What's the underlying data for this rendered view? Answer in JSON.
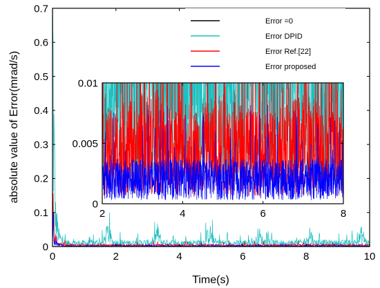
{
  "chart_data": [
    {
      "type": "line",
      "title": "",
      "xlabel": "Time(s)",
      "ylabel": "absolute value of Error(mrad/s)",
      "xlim": [
        0,
        10
      ],
      "ylim": [
        0,
        0.7
      ],
      "xticks": [
        "0",
        "2",
        "4",
        "6",
        "8",
        "10"
      ],
      "yticks": [
        "0",
        "0.1",
        "0.2",
        "0.3",
        "0.4",
        "0.5",
        "0.6",
        "0.7"
      ],
      "grid": false,
      "legend_position": "top-right",
      "series": [
        {
          "name": "Error =0",
          "color": "#000000",
          "x": [
            0,
            10
          ],
          "y": [
            0,
            0
          ]
        },
        {
          "name": "Error DPID",
          "color": "#1fbfbf",
          "x": [
            0,
            0.05,
            0.1,
            0.2,
            0.3,
            0.5,
            1.0,
            1.6,
            1.75,
            1.9,
            2.5,
            3.2,
            3.3,
            3.45,
            4.0,
            4.8,
            4.95,
            5.1,
            5.7,
            6.4,
            6.5,
            6.65,
            7.3,
            8.0,
            8.1,
            8.25,
            9.0,
            9.6,
            9.75,
            9.9,
            10.0
          ],
          "y": [
            0.6,
            0.25,
            0.08,
            0.03,
            0.015,
            0.01,
            0.01,
            0.012,
            0.04,
            0.012,
            0.01,
            0.012,
            0.04,
            0.012,
            0.01,
            0.012,
            0.04,
            0.012,
            0.01,
            0.012,
            0.035,
            0.012,
            0.01,
            0.012,
            0.04,
            0.012,
            0.01,
            0.012,
            0.035,
            0.012,
            0.01
          ]
        },
        {
          "name": "Error Ref.[22]",
          "color": "#ff0000",
          "x": [
            0,
            0.05,
            0.1,
            0.2,
            0.5,
            1.0,
            2.0,
            4.0,
            6.0,
            8.0,
            10.0
          ],
          "y": [
            0.13,
            0.05,
            0.02,
            0.008,
            0.005,
            0.004,
            0.004,
            0.004,
            0.004,
            0.004,
            0.004
          ]
        },
        {
          "name": "Error proposed",
          "color": "#0000ff",
          "x": [
            0,
            0.05,
            0.1,
            0.2,
            0.5,
            1.0,
            2.0,
            4.0,
            6.0,
            8.0,
            10.0
          ],
          "y": [
            0.1,
            0.03,
            0.01,
            0.004,
            0.002,
            0.002,
            0.002,
            0.002,
            0.002,
            0.002,
            0.002
          ]
        }
      ]
    },
    {
      "type": "line",
      "title": "",
      "xlabel": "",
      "ylabel": "",
      "xlim": [
        2,
        8
      ],
      "ylim": [
        0,
        0.01
      ],
      "xticks": [
        "2",
        "4",
        "6",
        "8"
      ],
      "yticks": [
        "0",
        "0.005",
        "0.01"
      ],
      "grid": false,
      "series": [
        {
          "name": "Error DPID",
          "color": "#1fbfbf",
          "x": [
            2,
            3.2,
            3.3,
            4.8,
            4.9,
            6.4,
            6.5,
            8
          ],
          "y": [
            0.008,
            0.009,
            0.01,
            0.009,
            0.01,
            0.009,
            0.01,
            0.008
          ]
        },
        {
          "name": "Error Ref.[22]",
          "color": "#ff0000",
          "x": [
            2,
            3,
            4,
            5,
            6,
            7,
            8
          ],
          "y": [
            0.004,
            0.005,
            0.004,
            0.005,
            0.004,
            0.005,
            0.004
          ]
        },
        {
          "name": "Error proposed",
          "color": "#0000ff",
          "x": [
            2,
            3,
            4,
            5,
            6,
            7,
            8
          ],
          "y": [
            0.002,
            0.002,
            0.002,
            0.002,
            0.002,
            0.002,
            0.002
          ]
        }
      ]
    }
  ]
}
